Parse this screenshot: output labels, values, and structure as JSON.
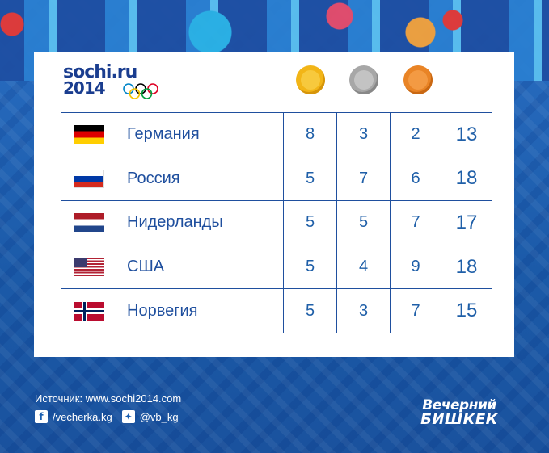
{
  "logo": {
    "line1": "sochi.ru",
    "line2": "2014"
  },
  "medals_header": [
    {
      "name": "gold",
      "color": "#f2b517"
    },
    {
      "name": "silver",
      "color": "#a7a7a7"
    },
    {
      "name": "bronze",
      "color": "#e98426"
    }
  ],
  "table": {
    "rows": [
      {
        "country": "Германия",
        "flag": "germany-flag",
        "gold": "8",
        "silver": "3",
        "bronze": "2",
        "total": "13"
      },
      {
        "country": "Россия",
        "flag": "russia-flag",
        "gold": "5",
        "silver": "7",
        "bronze": "6",
        "total": "18"
      },
      {
        "country": "Нидерланды",
        "flag": "netherlands-flag",
        "gold": "5",
        "silver": "5",
        "bronze": "7",
        "total": "17"
      },
      {
        "country": "США",
        "flag": "usa-flag",
        "gold": "5",
        "silver": "4",
        "bronze": "9",
        "total": "18"
      },
      {
        "country": "Норвегия",
        "flag": "norway-flag",
        "gold": "5",
        "silver": "3",
        "bronze": "7",
        "total": "15"
      }
    ]
  },
  "footer": {
    "source": "Источник: www.sochi2014.com",
    "facebook": "/vecherka.kg",
    "twitter": "@vb_kg"
  },
  "brand": {
    "line1": "Вечерний",
    "line2": "БИШКЕК"
  },
  "colors": {
    "accent": "#1f4f9e",
    "background": "#1a5fb0"
  }
}
